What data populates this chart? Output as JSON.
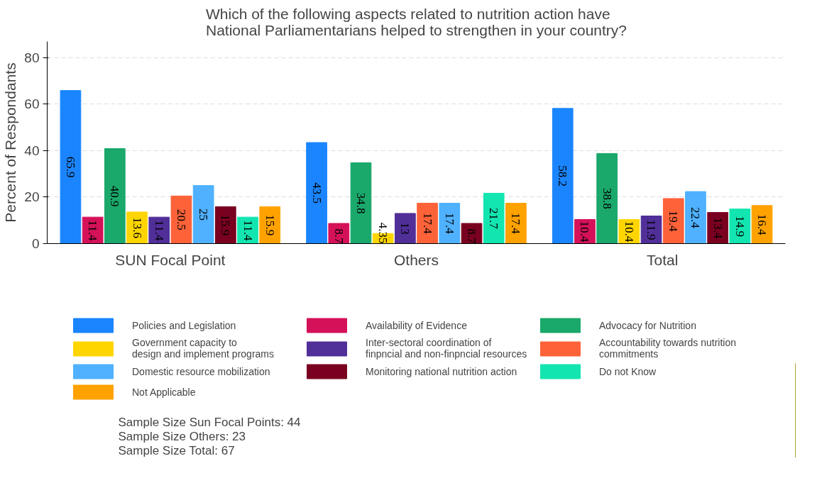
{
  "chart_data": {
    "type": "bar",
    "title": "Which of the following aspects related to nutrition action have\nNational Parliamentarians helped to strengthen in your country?",
    "ylabel": "Percent of Respondants",
    "categories": [
      "SUN Focal Point",
      "Others",
      "Total"
    ],
    "series": [
      {
        "name": "Policies and Legislation",
        "color": "#1a85ff",
        "values": [
          65.9,
          43.5,
          58.2
        ]
      },
      {
        "name": "Availability of Evidence",
        "color": "#d41159",
        "values": [
          11.4,
          8.7,
          10.4
        ]
      },
      {
        "name": "Advocacy for Nutrition",
        "color": "#1aa86b",
        "values": [
          40.9,
          34.8,
          38.8
        ]
      },
      {
        "name": "Government capacity to\ndesign and implement programs",
        "color": "#ffd500",
        "values": [
          13.6,
          4.35,
          10.4
        ]
      },
      {
        "name": "Inter-sectoral coordination of\nfinpncial and non-finpncial resources",
        "color": "#512f99",
        "values": [
          11.4,
          13,
          11.9
        ]
      },
      {
        "name": "Accountability towards nutrition\ncommitments",
        "color": "#fe6239",
        "values": [
          20.5,
          17.4,
          19.4
        ]
      },
      {
        "name": "Domestic resource mobilization",
        "color": "#4fb1ff",
        "values": [
          25,
          17.4,
          22.4
        ]
      },
      {
        "name": "Monitoring national nutrition action",
        "color": "#7a0020",
        "values": [
          15.9,
          8.7,
          13.4
        ]
      },
      {
        "name": "Do not Know",
        "color": "#13e5b0",
        "values": [
          11.4,
          21.7,
          14.9
        ]
      },
      {
        "name": "Not Applicable",
        "color": "#ffa200",
        "values": [
          15.9,
          17.4,
          16.4
        ]
      }
    ],
    "ylim": [
      0,
      87
    ],
    "yticks": [
      0,
      20,
      40,
      60,
      80
    ],
    "grid": "y",
    "legend": "bottom",
    "data_labels": true,
    "annotations": [
      "Sample Size Sun Focal Points: 44",
      "Sample Size Others: 23",
      "Sample Size Total: 67"
    ]
  }
}
